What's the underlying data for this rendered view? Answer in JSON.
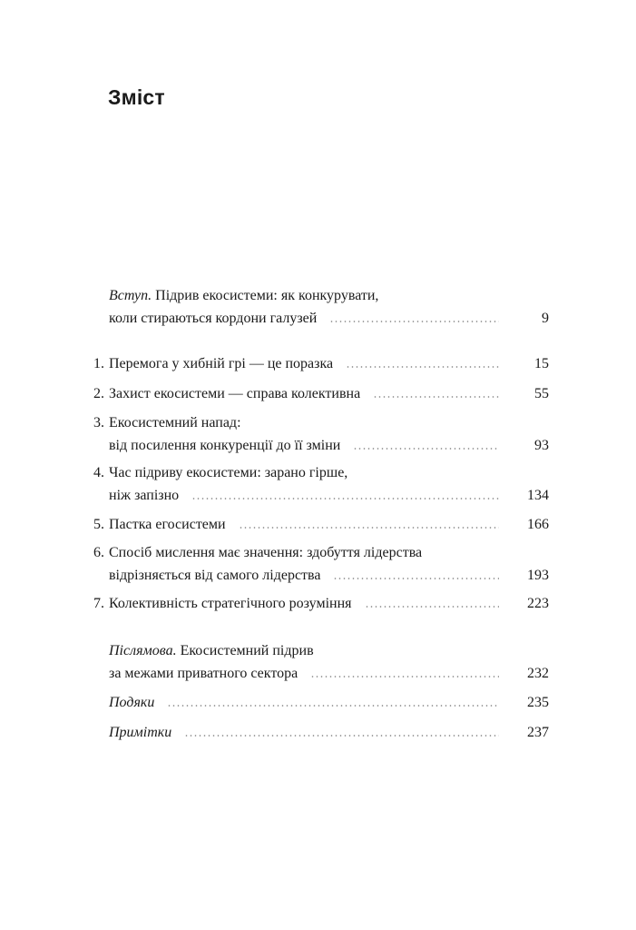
{
  "title": "Зміст",
  "entries": [
    {
      "prefix": "Вступ.",
      "lines": [
        "Підрив екосистеми: як конкурувати,",
        "коли стираються кордони галузей"
      ],
      "page": "9"
    },
    {
      "number": "1.",
      "lines": [
        "Перемога у хибній грі — це поразка"
      ],
      "page": "15"
    },
    {
      "number": "2.",
      "lines": [
        "Захист екосистеми — справа колективна"
      ],
      "page": "55"
    },
    {
      "number": "3.",
      "lines": [
        "Екосистемний напад:",
        "від посилення конкуренції до її зміни"
      ],
      "page": "93"
    },
    {
      "number": "4.",
      "lines": [
        "Час підриву екосистеми: зарано гірше,",
        "ніж запізно"
      ],
      "page": "134"
    },
    {
      "number": "5.",
      "lines": [
        "Пастка егосистеми"
      ],
      "page": "166"
    },
    {
      "number": "6.",
      "lines": [
        "Спосіб мислення має значення: здобуття лідерства",
        "відрізняється від самого лідерства"
      ],
      "page": "193"
    },
    {
      "number": "7.",
      "lines": [
        "Колективність стратегічного розуміння"
      ],
      "page": "223"
    },
    {
      "prefix": "Післямова.",
      "lines": [
        "Екосистемний підрив",
        "за межами приватного сектора"
      ],
      "page": "232"
    },
    {
      "italic_title": "Подяки",
      "page": "235"
    },
    {
      "italic_title": "Примітки",
      "page": "237"
    }
  ]
}
